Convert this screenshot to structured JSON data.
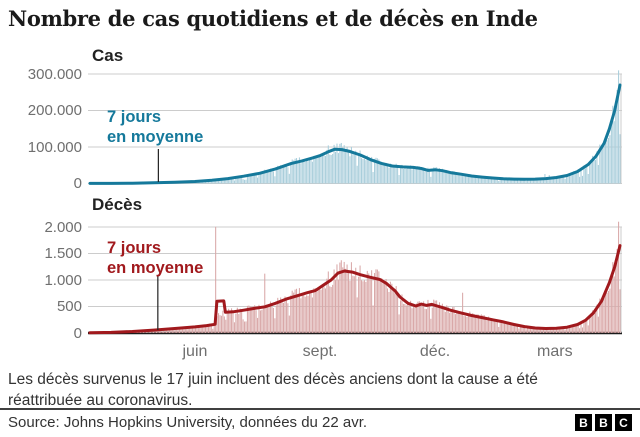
{
  "title": "Nombre de cas quotidiens et de décès en Inde",
  "note": {
    "line1": "Les décès survenus le 17 juin incluent des décès anciens dont la cause a été",
    "line2": "réattribuée au coronavirus."
  },
  "source": "Source: Johns Hopkins University, données du 22 avr.",
  "logo": {
    "letter1": "B",
    "letter2": "B",
    "letter3": "C"
  },
  "annotation": {
    "line1": "7 jours",
    "line2": "en moyenne"
  },
  "colors": {
    "cases_line": "#15799b",
    "cases_fill": "#a9cedb",
    "deaths_line": "#a1191d",
    "deaths_fill": "#d9a8a8",
    "grid": "#cccccc",
    "axis_dark": "#1a1a1a",
    "pointer": "#222222",
    "tick_text": "#6f6f6f"
  },
  "x_axis": {
    "ticks": [
      {
        "label": "juin",
        "f": 0.198
      },
      {
        "label": "sept.",
        "f": 0.434
      },
      {
        "label": "déc.",
        "f": 0.651
      },
      {
        "label": "mars",
        "f": 0.877
      }
    ]
  },
  "chart_data": [
    {
      "id": "cases",
      "type": "bar",
      "label": "Cas",
      "series_name": "7 jours en moyenne",
      "ylim": [
        0,
        300000
      ],
      "y_ticks": [
        {
          "label": "300.000",
          "value": 300000
        },
        {
          "label": "200.000",
          "value": 200000
        },
        {
          "label": "100.000",
          "value": 100000
        },
        {
          "label": "0",
          "value": 0
        }
      ],
      "pointer_f": 0.129,
      "line_points": [
        [
          0,
          150
        ],
        [
          0.04,
          400
        ],
        [
          0.08,
          900
        ],
        [
          0.12,
          1800
        ],
        [
          0.16,
          3200
        ],
        [
          0.198,
          5500
        ],
        [
          0.23,
          9000
        ],
        [
          0.26,
          13500
        ],
        [
          0.29,
          20000
        ],
        [
          0.32,
          28000
        ],
        [
          0.35,
          40000
        ],
        [
          0.38,
          55000
        ],
        [
          0.4,
          62000
        ],
        [
          0.42,
          70000
        ],
        [
          0.435,
          77000
        ],
        [
          0.45,
          87000
        ],
        [
          0.462,
          94000
        ],
        [
          0.475,
          93000
        ],
        [
          0.49,
          88000
        ],
        [
          0.51,
          78000
        ],
        [
          0.53,
          65000
        ],
        [
          0.55,
          55000
        ],
        [
          0.57,
          48000
        ],
        [
          0.59,
          45500
        ],
        [
          0.61,
          44000
        ],
        [
          0.625,
          41000
        ],
        [
          0.638,
          36000
        ],
        [
          0.652,
          37500
        ],
        [
          0.665,
          35000
        ],
        [
          0.68,
          30000
        ],
        [
          0.7,
          25500
        ],
        [
          0.72,
          20500
        ],
        [
          0.74,
          17500
        ],
        [
          0.76,
          15000
        ],
        [
          0.78,
          13000
        ],
        [
          0.8,
          12000
        ],
        [
          0.82,
          11500
        ],
        [
          0.84,
          12000
        ],
        [
          0.86,
          13500
        ],
        [
          0.88,
          16500
        ],
        [
          0.9,
          22000
        ],
        [
          0.92,
          33000
        ],
        [
          0.94,
          52000
        ],
        [
          0.955,
          75000
        ],
        [
          0.97,
          110000
        ],
        [
          0.98,
          150000
        ],
        [
          0.99,
          200000
        ],
        [
          1.0,
          270000
        ]
      ],
      "spikes": [
        [
          0.857,
          26000
        ],
        [
          0.867,
          23000
        ],
        [
          0.998,
          310000
        ]
      ],
      "bar_scale_regions": []
    },
    {
      "id": "deaths",
      "type": "bar",
      "label": "Décès",
      "series_name": "7 jours en moyenne",
      "ylim": [
        0,
        2000
      ],
      "y_ticks": [
        {
          "label": "2.000",
          "value": 2000
        },
        {
          "label": "1.500",
          "value": 1500
        },
        {
          "label": "1.000",
          "value": 1000
        },
        {
          "label": "500",
          "value": 500
        },
        {
          "label": "0",
          "value": 0
        }
      ],
      "pointer_f": 0.128,
      "line_points": [
        [
          0,
          3
        ],
        [
          0.04,
          12
        ],
        [
          0.08,
          28
        ],
        [
          0.12,
          55
        ],
        [
          0.16,
          85
        ],
        [
          0.198,
          115
        ],
        [
          0.22,
          140
        ],
        [
          0.236,
          165
        ],
        [
          0.2395,
          600
        ],
        [
          0.2525,
          605
        ],
        [
          0.2555,
          390
        ],
        [
          0.27,
          400
        ],
        [
          0.29,
          430
        ],
        [
          0.31,
          465
        ],
        [
          0.33,
          495
        ],
        [
          0.35,
          560
        ],
        [
          0.37,
          640
        ],
        [
          0.39,
          700
        ],
        [
          0.41,
          760
        ],
        [
          0.425,
          800
        ],
        [
          0.44,
          900
        ],
        [
          0.455,
          1000
        ],
        [
          0.468,
          1130
        ],
        [
          0.48,
          1170
        ],
        [
          0.495,
          1150
        ],
        [
          0.51,
          1100
        ],
        [
          0.53,
          1050
        ],
        [
          0.547,
          1010
        ],
        [
          0.56,
          930
        ],
        [
          0.575,
          800
        ],
        [
          0.585,
          680
        ],
        [
          0.6,
          560
        ],
        [
          0.615,
          510
        ],
        [
          0.625,
          545
        ],
        [
          0.635,
          520
        ],
        [
          0.645,
          540
        ],
        [
          0.655,
          510
        ],
        [
          0.665,
          480
        ],
        [
          0.68,
          430
        ],
        [
          0.7,
          380
        ],
        [
          0.72,
          330
        ],
        [
          0.74,
          290
        ],
        [
          0.76,
          250
        ],
        [
          0.78,
          210
        ],
        [
          0.8,
          160
        ],
        [
          0.82,
          120
        ],
        [
          0.84,
          95
        ],
        [
          0.86,
          85
        ],
        [
          0.88,
          90
        ],
        [
          0.9,
          110
        ],
        [
          0.92,
          160
        ],
        [
          0.935,
          240
        ],
        [
          0.95,
          380
        ],
        [
          0.965,
          600
        ],
        [
          0.98,
          950
        ],
        [
          0.99,
          1250
        ],
        [
          1.0,
          1650
        ]
      ],
      "spikes": [
        [
          0.2377,
          2003
        ],
        [
          0.33,
          1120
        ],
        [
          0.703,
          760
        ],
        [
          0.998,
          2100
        ]
      ],
      "bar_scale_regions": [
        {
          "from": 0.2385,
          "to": 0.2565,
          "scale": 0.6
        }
      ]
    }
  ]
}
